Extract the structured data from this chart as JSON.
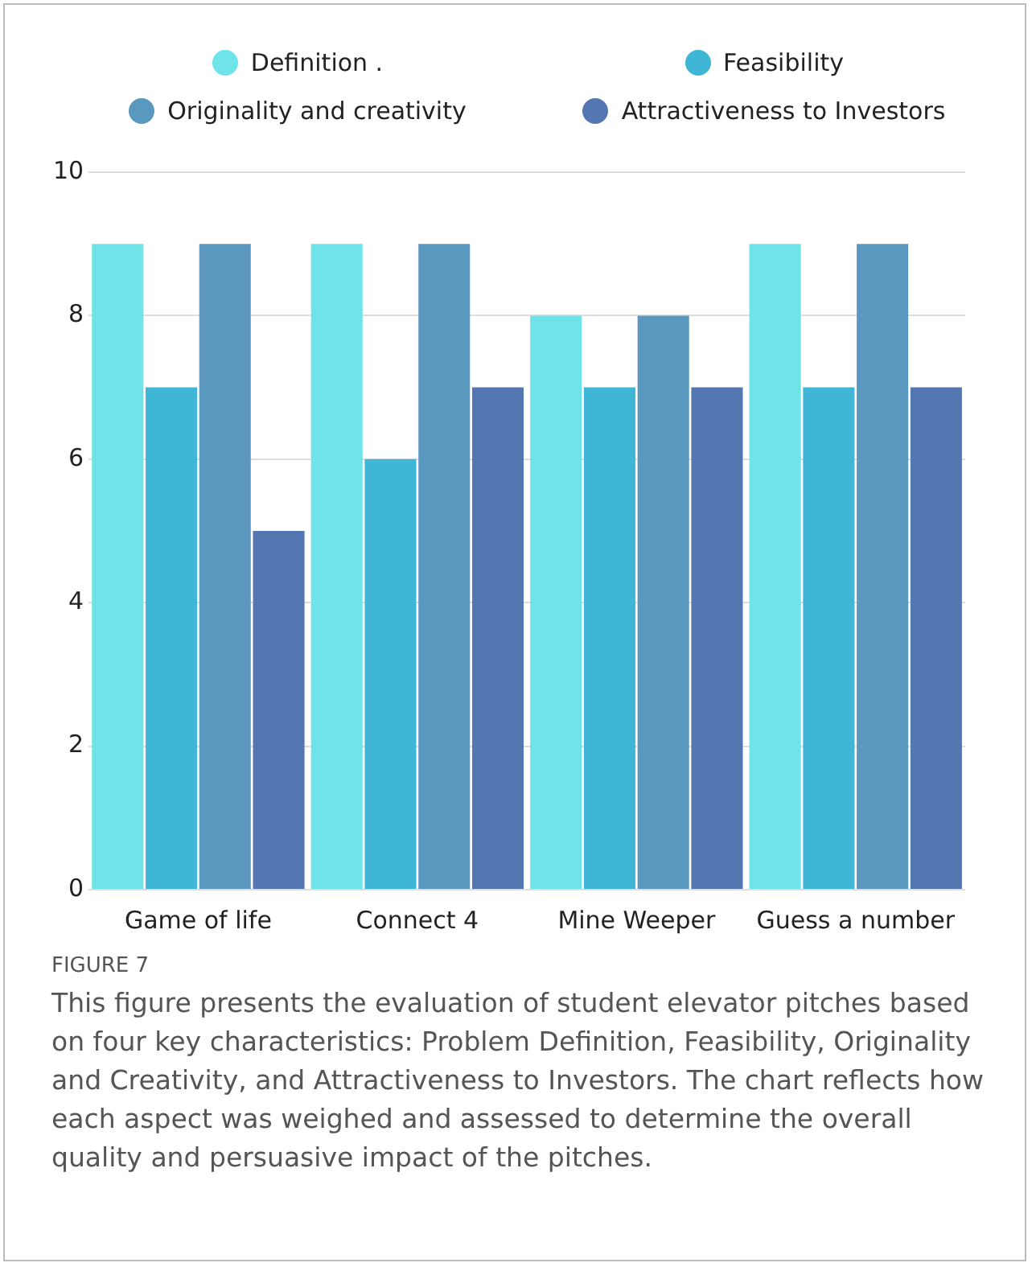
{
  "chart_data": {
    "type": "bar",
    "categories": [
      "Game of life",
      "Connect 4",
      "Mine Weeper",
      "Guess a number"
    ],
    "series": [
      {
        "name": "Definition .",
        "color": "#6ee3e8",
        "values": [
          9,
          9,
          8,
          9
        ]
      },
      {
        "name": "Feasibility",
        "color": "#40b6d7",
        "values": [
          7,
          6,
          7,
          7
        ]
      },
      {
        "name": "Originality and creativity",
        "color": "#5b98c0",
        "values": [
          9,
          9,
          8,
          9
        ]
      },
      {
        "name": "Attractiveness to Investors",
        "color": "#5577b1",
        "values": [
          5,
          7,
          7,
          7
        ]
      }
    ],
    "ylim": [
      0,
      10
    ],
    "yticks": [
      0,
      2,
      4,
      6,
      8,
      10
    ],
    "grid": "y",
    "legend": "top",
    "annotations": [
      "FIGURE 7",
      "This figure presents the evaluation of student elevator pitches based on four key characteristics: Problem Definition, Feasibility, Originality and Creativity, and Attractiveness to Investors. The chart reflects how each aspect was weighed and assessed to determine the overall quality and persuasive impact of the pitches."
    ]
  }
}
